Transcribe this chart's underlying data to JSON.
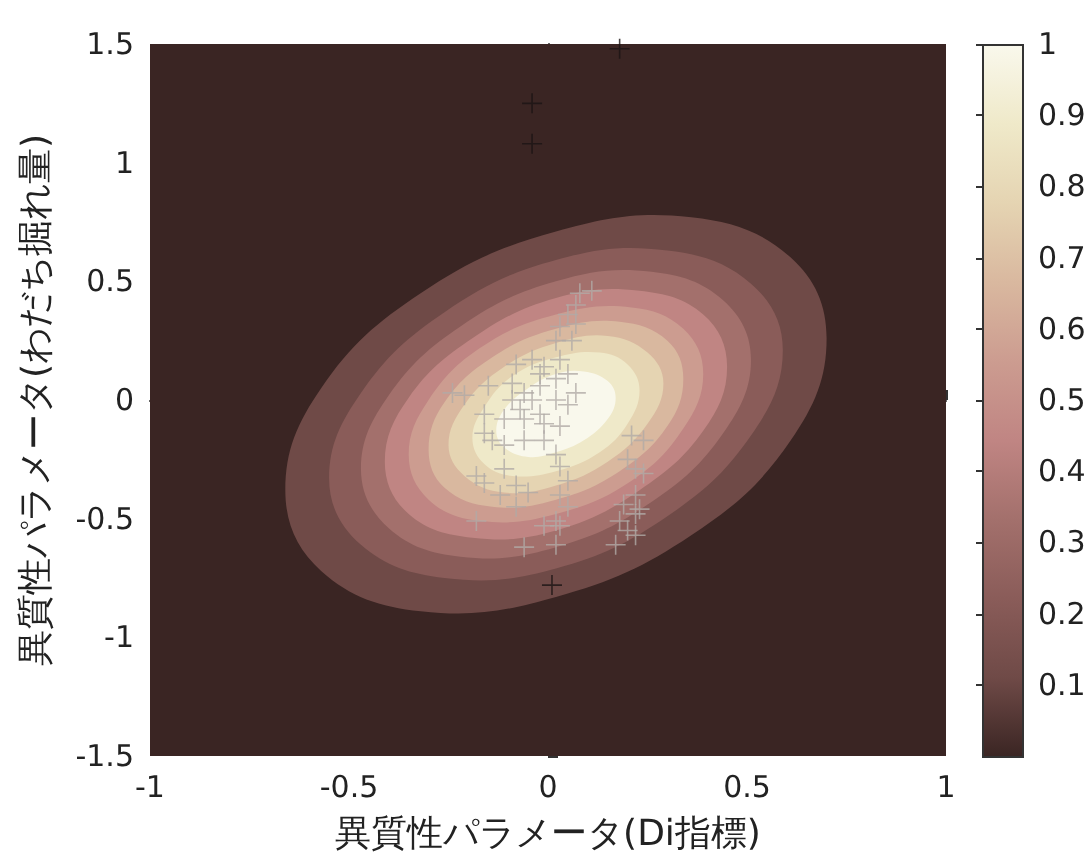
{
  "chart_data": {
    "type": "scatter",
    "xlabel": "異質性パラメータ(Di指標)",
    "ylabel": "異質性パラメータ(わだち掘れ量)",
    "xlim": [
      -1,
      1
    ],
    "ylim": [
      -1.5,
      1.5
    ],
    "xticks": [
      -1,
      -0.5,
      0,
      0.5,
      1
    ],
    "yticks": [
      -1.5,
      -1,
      -0.5,
      0,
      0.5,
      1,
      1.5
    ],
    "clim": [
      0,
      1
    ],
    "cticks": [
      0.1,
      0.2,
      0.3,
      0.4,
      0.5,
      0.6,
      0.7,
      0.8,
      0.9,
      1
    ],
    "marker": "cross",
    "bands": [
      {
        "axis": "x",
        "from": -1,
        "to": 1,
        "color": "#3a2523"
      }
    ],
    "series": [
      {
        "type": "area",
        "marker": "none",
        "color": "#6f4a47",
        "x": [
          0.7,
          0.61,
          0.36,
          0.02,
          -0.32,
          -0.57,
          -0.66,
          -0.57,
          -0.32,
          0.02,
          0.36,
          0.61
        ],
        "values": [
          0.26,
          0.6,
          0.77,
          0.71,
          0.45,
          0.05,
          -0.38,
          -0.72,
          -0.89,
          -0.83,
          -0.57,
          -0.17
        ]
      },
      {
        "type": "area",
        "marker": "none",
        "color": "#8a5c59",
        "x": [
          0.59,
          0.51,
          0.3,
          0.02,
          -0.26,
          -0.47,
          -0.55,
          -0.47,
          -0.26,
          0.02,
          0.3,
          0.51
        ],
        "values": [
          0.21,
          0.49,
          0.63,
          0.59,
          0.37,
          0.03,
          -0.33,
          -0.61,
          -0.75,
          -0.71,
          -0.49,
          -0.15
        ]
      },
      {
        "type": "area",
        "marker": "none",
        "color": "#a3706c",
        "x": [
          0.51,
          0.44,
          0.26,
          0.02,
          -0.22,
          -0.4,
          -0.47,
          -0.4,
          -0.22,
          0.02,
          0.26,
          0.44
        ],
        "values": [
          0.17,
          0.42,
          0.54,
          0.5,
          0.31,
          0.02,
          -0.29,
          -0.54,
          -0.66,
          -0.62,
          -0.43,
          -0.14
        ]
      },
      {
        "type": "area",
        "marker": "none",
        "color": "#c08583",
        "x": [
          0.45,
          0.39,
          0.23,
          0.02,
          -0.19,
          -0.35,
          -0.41,
          -0.35,
          -0.19,
          0.02,
          0.23,
          0.39
        ],
        "values": [
          0.14,
          0.36,
          0.46,
          0.43,
          0.26,
          0.01,
          -0.26,
          -0.48,
          -0.58,
          -0.55,
          -0.38,
          -0.13
        ]
      },
      {
        "type": "area",
        "marker": "none",
        "color": "#cc9c90",
        "x": [
          0.39,
          0.34,
          0.21,
          0.02,
          -0.17,
          -0.3,
          -0.35,
          -0.3,
          -0.17,
          0.02,
          0.21,
          0.34
        ],
        "values": [
          0.11,
          0.3,
          0.39,
          0.36,
          0.22,
          0.0,
          -0.23,
          -0.42,
          -0.51,
          -0.48,
          -0.34,
          -0.12
        ]
      },
      {
        "type": "area",
        "marker": "none",
        "color": "#d9b89f",
        "x": [
          0.34,
          0.3,
          0.18,
          0.02,
          -0.14,
          -0.26,
          -0.3,
          -0.26,
          -0.14,
          0.02,
          0.18,
          0.3
        ],
        "values": [
          0.09,
          0.25,
          0.33,
          0.3,
          0.18,
          -0.01,
          -0.21,
          -0.37,
          -0.45,
          -0.42,
          -0.3,
          -0.11
        ]
      },
      {
        "type": "area",
        "marker": "none",
        "color": "#e5d4b2",
        "x": [
          0.29,
          0.25,
          0.15,
          0.02,
          -0.11,
          -0.21,
          -0.25,
          -0.21,
          -0.11,
          0.02,
          0.15,
          0.25
        ],
        "values": [
          0.07,
          0.2,
          0.27,
          0.24,
          0.14,
          -0.02,
          -0.19,
          -0.32,
          -0.39,
          -0.36,
          -0.26,
          -0.1
        ]
      },
      {
        "type": "area",
        "marker": "none",
        "color": "#efe9c9",
        "x": [
          0.23,
          0.2,
          0.13,
          0.02,
          -0.09,
          -0.16,
          -0.19,
          -0.16,
          -0.09,
          0.02,
          0.13,
          0.2
        ],
        "values": [
          0.04,
          0.15,
          0.2,
          0.18,
          0.1,
          -0.03,
          -0.16,
          -0.27,
          -0.32,
          -0.3,
          -0.22,
          -0.1
        ]
      },
      {
        "type": "area",
        "marker": "none",
        "color": "#f9f8ec",
        "x": [
          0.17,
          0.15,
          0.09,
          0.02,
          -0.05,
          -0.11,
          -0.13,
          -0.11,
          -0.05,
          0.02,
          0.09,
          0.15
        ],
        "values": [
          0.01,
          0.08,
          0.12,
          0.11,
          0.05,
          -0.04,
          -0.13,
          -0.2,
          -0.24,
          -0.22,
          -0.17,
          -0.08
        ]
      },
      {
        "color": "#1c1414",
        "x": [
          0.18,
          -0.04,
          -0.04,
          0.01
        ],
        "values": [
          1.48,
          1.25,
          1.08,
          -0.78
        ]
      },
      {
        "color": "#b0aaa6",
        "x": [
          0.08,
          0.11,
          0.07,
          0.05,
          0.03,
          0.02,
          0.06,
          0.03,
          -0.01,
          -0.04,
          -0.08,
          -0.24,
          -0.21,
          -0.15,
          -0.09,
          -0.06,
          -0.02,
          0.02,
          0.05,
          0.07,
          0.05,
          -0.02,
          -0.07,
          -0.11,
          -0.16,
          -0.16,
          -0.14,
          -0.11,
          -0.06,
          -0.01,
          0.03,
          0.02,
          0.03,
          0.05,
          0.03,
          0.05,
          0.02,
          0.03,
          -0.01,
          0.02,
          -0.06,
          -0.18,
          -0.18,
          -0.16,
          -0.12,
          -0.08,
          -0.08,
          -0.05,
          -0.11,
          0.21,
          0.24,
          0.2,
          0.22,
          0.24,
          0.22,
          0.19,
          0.22,
          0.18,
          0.23,
          0.2,
          0.17,
          0.22,
          -0.09,
          -0.04,
          0.02,
          -0.06,
          -0.01,
          -0.02,
          0.07
        ],
        "values": [
          0.45,
          0.46,
          0.4,
          0.36,
          0.31,
          0.25,
          0.25,
          0.17,
          0.14,
          0.17,
          0.15,
          0.03,
          0.02,
          0.06,
          0.07,
          0.03,
          0.06,
          0.09,
          0.11,
          0.03,
          -0.02,
          -0.06,
          -0.04,
          -0.08,
          -0.06,
          -0.14,
          -0.17,
          -0.19,
          -0.17,
          -0.17,
          -0.11,
          -0.23,
          -0.28,
          -0.34,
          -0.4,
          -0.45,
          -0.51,
          -0.53,
          -0.53,
          -0.61,
          -0.62,
          -0.51,
          -0.32,
          -0.35,
          -0.4,
          -0.45,
          -0.36,
          -0.39,
          -0.29,
          -0.15,
          -0.17,
          -0.25,
          -0.29,
          -0.31,
          -0.4,
          -0.44,
          -0.48,
          -0.51,
          -0.46,
          -0.55,
          -0.61,
          -0.57,
          0.0,
          0.0,
          0.0,
          -0.08,
          -0.1,
          0.11,
          0.32
        ]
      }
    ]
  }
}
